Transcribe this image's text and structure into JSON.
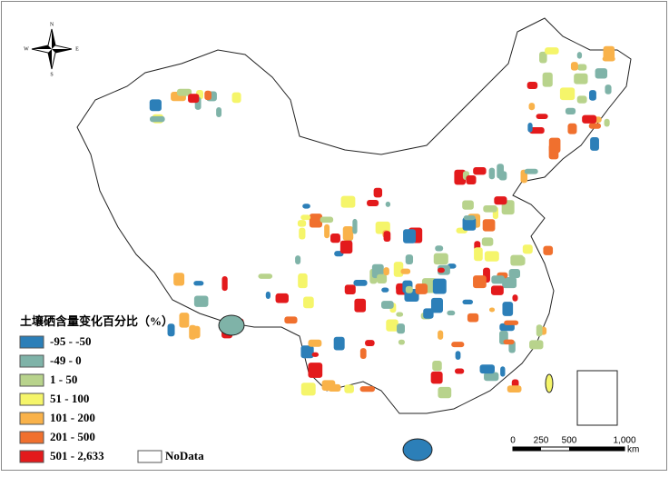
{
  "legend": {
    "title": "土壤硒含量变化百分比（%）",
    "items": [
      {
        "label": "-95 - -50",
        "color": "#2c7fb8"
      },
      {
        "label": "-49 - 0",
        "color": "#7fb3a8"
      },
      {
        "label": "1 - 50",
        "color": "#b8d38c"
      },
      {
        "label": "51 - 100",
        "color": "#f5f56a"
      },
      {
        "label": "101 - 200",
        "color": "#f9b24a"
      },
      {
        "label": "201 - 500",
        "color": "#f0702e"
      },
      {
        "label": "501 - 2,633",
        "color": "#e31a1c"
      }
    ],
    "nodata": "NoData"
  },
  "scale_bar": {
    "ticks": [
      "0",
      "250",
      "500",
      "1,000"
    ],
    "unit": "km"
  },
  "compass": {
    "north": "N",
    "south": "S",
    "east": "E",
    "west": "W"
  }
}
